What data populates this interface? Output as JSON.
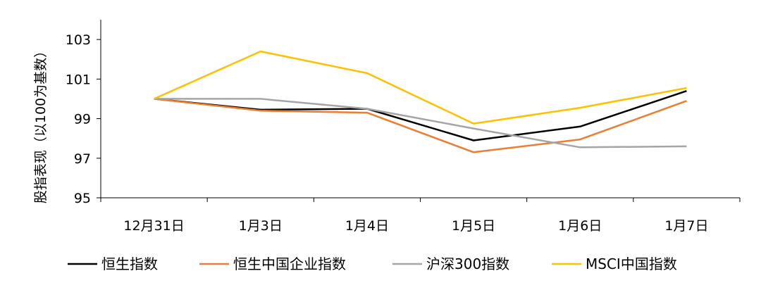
{
  "chart_data": {
    "type": "line",
    "title": "",
    "xlabel": "",
    "ylabel": "股指表现（以100为基数）",
    "categories": [
      "12月31日",
      "1月3日",
      "1月4日",
      "1月5日",
      "1月6日",
      "1月7日"
    ],
    "ylim": [
      95,
      104
    ],
    "yticks": [
      95,
      97,
      99,
      101,
      103
    ],
    "grid": false,
    "legend_position": "bottom",
    "series": [
      {
        "name": "恒生指数",
        "color": "#000000",
        "values": [
          100.0,
          99.45,
          99.5,
          97.9,
          98.6,
          100.4
        ]
      },
      {
        "name": "恒生中国企业指数",
        "color": "#ED7D31",
        "values": [
          100.0,
          99.4,
          99.3,
          97.3,
          97.95,
          99.9
        ]
      },
      {
        "name": "沪深300指数",
        "color": "#A5A5A5",
        "values": [
          100.0,
          100.0,
          99.5,
          98.5,
          97.55,
          97.6
        ]
      },
      {
        "name": "MSCI中国指数",
        "color": "#FFC000",
        "values": [
          100.0,
          102.4,
          101.3,
          98.75,
          99.55,
          100.55
        ]
      }
    ]
  }
}
